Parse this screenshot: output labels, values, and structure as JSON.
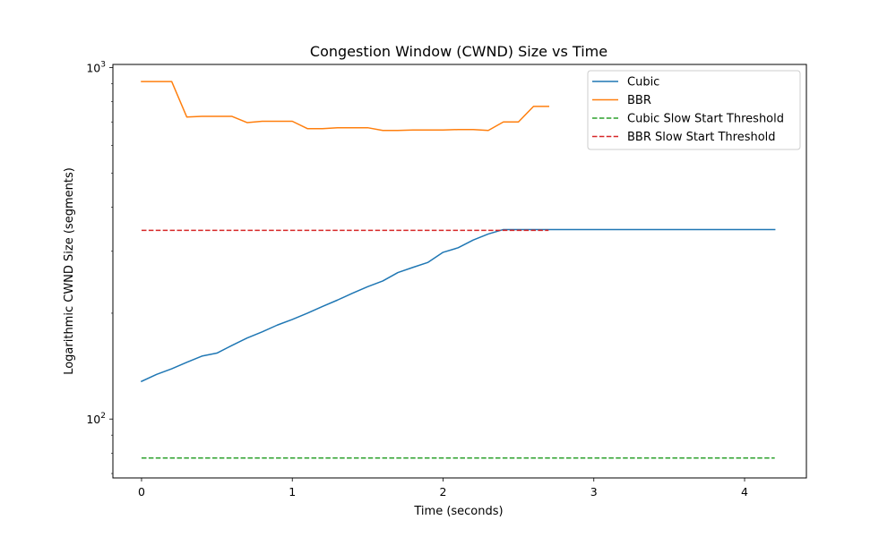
{
  "chart_data": {
    "type": "line",
    "title": "Congestion Window (CWND) Size vs Time",
    "xlabel": "Time (seconds)",
    "ylabel": "Logarithmic CWND Size (segments)",
    "xlim": [
      -0.19,
      4.41
    ],
    "ylim": [
      68,
      1020
    ],
    "y_scale": "log",
    "grid": false,
    "legend_position": "top-right",
    "x_ticks": [
      {
        "value": 0,
        "label": "0"
      },
      {
        "value": 1,
        "label": "1"
      },
      {
        "value": 2,
        "label": "2"
      },
      {
        "value": 3,
        "label": "3"
      },
      {
        "value": 4,
        "label": "4"
      }
    ],
    "y_ticks_major": [
      {
        "value": 100,
        "base": "10",
        "exp": "2"
      },
      {
        "value": 1000,
        "base": "10",
        "exp": "3"
      }
    ],
    "y_ticks_minor": [
      70,
      80,
      90,
      200,
      300,
      400,
      500,
      600,
      700,
      800,
      900
    ],
    "series": [
      {
        "name": "Cubic",
        "color": "#1f77b4",
        "style": "solid",
        "x": [
          0,
          0.1,
          0.2,
          0.3,
          0.4,
          0.5,
          0.6,
          0.7,
          0.8,
          0.9,
          1.0,
          1.1,
          1.2,
          1.3,
          1.4,
          1.5,
          1.6,
          1.7,
          1.8,
          1.9,
          2.0,
          2.1,
          2.2,
          2.3,
          2.4,
          2.5,
          2.6,
          2.7,
          2.8,
          2.9,
          3.0,
          3.1,
          3.2,
          3.3,
          3.4,
          3.5,
          3.6,
          3.7,
          3.8,
          3.9,
          4.0,
          4.1,
          4.2
        ],
        "y": [
          128,
          134,
          139,
          145,
          151,
          154,
          162,
          170,
          177,
          185,
          192,
          200,
          209,
          218,
          228,
          238,
          247,
          261,
          270,
          279,
          298,
          307,
          323,
          336,
          346,
          346,
          346,
          346,
          346,
          346,
          346,
          346,
          346,
          346,
          346,
          346,
          346,
          346,
          346,
          346,
          346,
          346,
          346
        ]
      },
      {
        "name": "BBR",
        "color": "#ff7f0e",
        "style": "solid",
        "x": [
          0,
          0.1,
          0.2,
          0.3,
          0.4,
          0.5,
          0.6,
          0.7,
          0.8,
          0.9,
          1.0,
          1.1,
          1.2,
          1.3,
          1.4,
          1.5,
          1.6,
          1.7,
          1.8,
          1.9,
          2.0,
          2.1,
          2.2,
          2.3,
          2.4,
          2.5,
          2.6,
          2.7
        ],
        "y": [
          912,
          912,
          912,
          723,
          726,
          726,
          726,
          697,
          703,
          703,
          703,
          670,
          670,
          674,
          674,
          674,
          662,
          662,
          664,
          664,
          664,
          666,
          666,
          662,
          700,
          700,
          775,
          775
        ]
      },
      {
        "name": "Cubic Slow Start Threshold",
        "color": "#2ca02c",
        "style": "dashed",
        "x": [
          0,
          4.2
        ],
        "y": [
          77.5,
          77.5
        ]
      },
      {
        "name": "BBR Slow Start Threshold",
        "color": "#d62728",
        "style": "dashed",
        "x": [
          0,
          2.7
        ],
        "y": [
          344,
          344
        ]
      }
    ]
  }
}
